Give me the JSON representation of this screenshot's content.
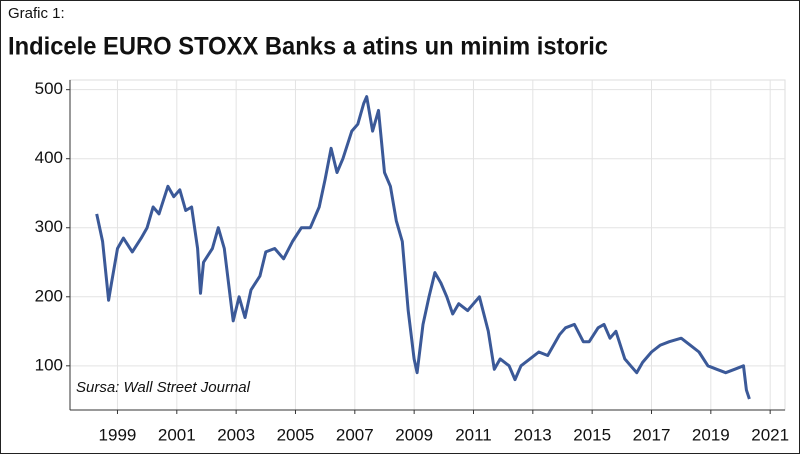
{
  "chart_data": {
    "type": "line",
    "figure_label": "Grafic 1:",
    "title": "Indicele EURO STOXX Banks a atins un minim istoric",
    "annotation": "Sursa: Wall Street Journal",
    "xlim": [
      1997.4,
      2021.5
    ],
    "xticks": [
      1999,
      2001,
      2003,
      2005,
      2007,
      2009,
      2011,
      2013,
      2015,
      2017,
      2019,
      2021
    ],
    "ylim": [
      36,
      514
    ],
    "yticks": [
      100,
      200,
      300,
      400,
      500
    ],
    "grid": true,
    "x": [
      1998.3,
      1998.5,
      1998.7,
      1998.8,
      1999.0,
      1999.2,
      1999.5,
      1999.8,
      2000.0,
      2000.2,
      2000.4,
      2000.7,
      2000.9,
      2001.1,
      2001.3,
      2001.5,
      2001.7,
      2001.8,
      2001.9,
      2002.2,
      2002.4,
      2002.6,
      2002.8,
      2002.9,
      2003.1,
      2003.3,
      2003.5,
      2003.8,
      2004.0,
      2004.3,
      2004.6,
      2004.9,
      2005.2,
      2005.5,
      2005.8,
      2006.0,
      2006.2,
      2006.4,
      2006.6,
      2006.9,
      2007.1,
      2007.3,
      2007.4,
      2007.6,
      2007.8,
      2008.0,
      2008.2,
      2008.4,
      2008.6,
      2008.8,
      2009.0,
      2009.1,
      2009.3,
      2009.5,
      2009.7,
      2009.9,
      2010.1,
      2010.3,
      2010.5,
      2010.8,
      2011.0,
      2011.2,
      2011.5,
      2011.7,
      2011.9,
      2012.2,
      2012.4,
      2012.6,
      2012.9,
      2013.2,
      2013.5,
      2013.9,
      2014.1,
      2014.4,
      2014.7,
      2014.9,
      2015.2,
      2015.4,
      2015.6,
      2015.8,
      2016.1,
      2016.3,
      2016.5,
      2016.7,
      2017.0,
      2017.3,
      2017.6,
      2018.0,
      2018.3,
      2018.6,
      2018.9,
      2019.2,
      2019.5,
      2019.8,
      2020.1,
      2020.2,
      2020.3
    ],
    "series": [
      {
        "name": "EURO STOXX Banks",
        "color": "#3b5998",
        "values": [
          320,
          280,
          195,
          220,
          270,
          285,
          265,
          285,
          300,
          330,
          320,
          360,
          345,
          355,
          325,
          330,
          270,
          205,
          250,
          270,
          300,
          270,
          200,
          165,
          200,
          170,
          210,
          230,
          265,
          270,
          255,
          280,
          300,
          300,
          330,
          370,
          415,
          380,
          400,
          440,
          450,
          480,
          490,
          440,
          470,
          380,
          360,
          310,
          280,
          180,
          110,
          90,
          160,
          200,
          235,
          220,
          200,
          175,
          190,
          180,
          190,
          200,
          150,
          95,
          110,
          100,
          80,
          100,
          110,
          120,
          115,
          145,
          155,
          160,
          135,
          135,
          155,
          160,
          140,
          150,
          110,
          100,
          90,
          105,
          120,
          130,
          135,
          140,
          130,
          120,
          100,
          95,
          90,
          95,
          100,
          65,
          52
        ]
      }
    ]
  }
}
